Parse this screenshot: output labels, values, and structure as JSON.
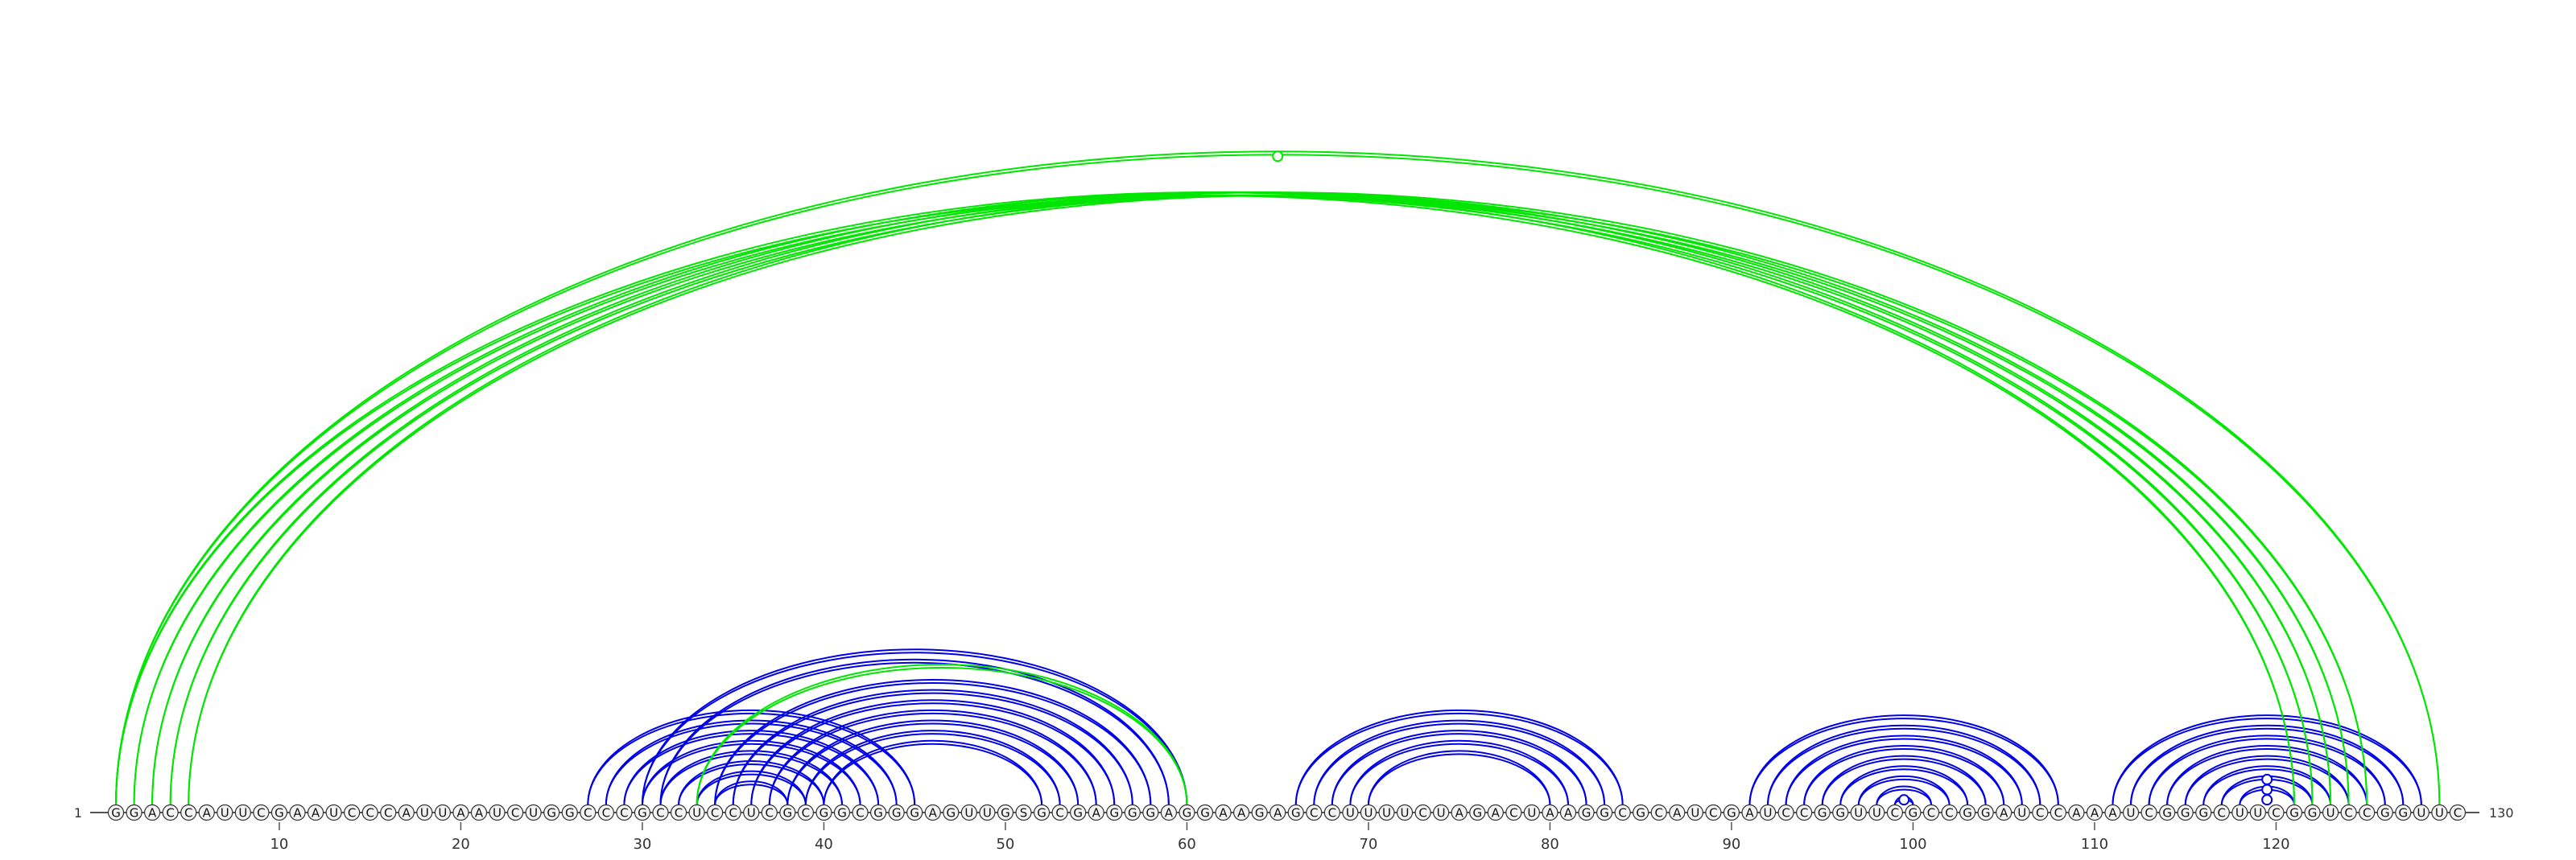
{
  "sequence": {
    "start_label": "1",
    "end_label": "130",
    "residues": "GGACCAUUCGAAUCCCAUUAAUCUGGCCCGCCUCCUCGCGGCGGGAGUUGSGCGAGGGAGGAAGAGCCUUUUCUAGACUAAGGCGCAUCGAUCCGGUUCGCCGGAUCCAAAUCGGGCUUCGGUCCGGUUC"
  },
  "ticks": [
    "10",
    "20",
    "30",
    "40",
    "50",
    "60",
    "70",
    "80",
    "90",
    "100",
    "110",
    "120"
  ],
  "colors": {
    "secondary_arcs": "#0000e6",
    "tertiary_arcs": "#00e600",
    "backbone": "#555555",
    "nucleotide_fill": "#f4f4f4",
    "nucleotide_stroke": "#333333"
  },
  "arc_groups": [
    {
      "name": "secondary-helix-a",
      "type": "secondary",
      "pairs": [
        [
          27,
          45
        ],
        [
          28,
          44
        ],
        [
          29,
          43
        ],
        [
          30,
          42
        ],
        [
          31,
          41
        ],
        [
          32,
          40
        ],
        [
          33,
          39
        ],
        [
          34,
          38
        ]
      ]
    },
    {
      "name": "secondary-helix-b",
      "type": "secondary",
      "pairs": [
        [
          30,
          60
        ],
        [
          31,
          59
        ],
        [
          34,
          58
        ],
        [
          35,
          57
        ],
        [
          36,
          56
        ],
        [
          37,
          55
        ],
        [
          38,
          54
        ],
        [
          39,
          53
        ],
        [
          40,
          52
        ]
      ]
    },
    {
      "name": "secondary-helix-c",
      "type": "secondary",
      "pairs": [
        [
          66,
          84
        ],
        [
          67,
          83
        ],
        [
          68,
          82
        ],
        [
          69,
          81
        ],
        [
          70,
          80
        ]
      ]
    },
    {
      "name": "secondary-helix-d",
      "type": "secondary",
      "pairs": [
        [
          91,
          108
        ],
        [
          92,
          107
        ],
        [
          93,
          106
        ],
        [
          94,
          105
        ],
        [
          95,
          104
        ],
        [
          96,
          103
        ],
        [
          97,
          102
        ],
        [
          98,
          101
        ],
        [
          99,
          100
        ]
      ]
    },
    {
      "name": "secondary-helix-e",
      "type": "secondary",
      "pairs": [
        [
          111,
          128
        ],
        [
          112,
          127
        ],
        [
          113,
          126
        ],
        [
          114,
          125
        ],
        [
          115,
          124
        ],
        [
          116,
          123
        ],
        [
          117,
          122
        ],
        [
          118,
          121
        ]
      ]
    },
    {
      "name": "tertiary-long-range",
      "type": "tertiary",
      "pairs": [
        [
          1,
          121
        ],
        [
          2,
          122
        ],
        [
          3,
          123
        ],
        [
          4,
          124
        ],
        [
          5,
          125
        ],
        [
          1,
          129
        ]
      ]
    },
    {
      "name": "tertiary-middle",
      "type": "tertiary",
      "pairs": [
        [
          33,
          60
        ]
      ]
    }
  ],
  "noncanonical_markers": [
    [
      1,
      129
    ],
    [
      99,
      100
    ],
    [
      119,
      120
    ],
    [
      118,
      121
    ],
    [
      117,
      122
    ]
  ]
}
